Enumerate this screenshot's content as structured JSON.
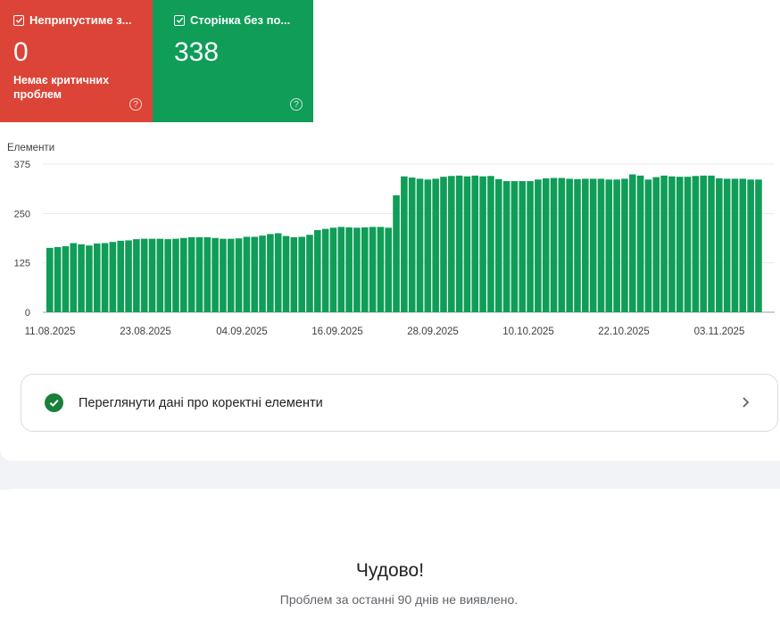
{
  "cards": {
    "invalid": {
      "title": "Неприпустиме з...",
      "value": "0",
      "subtitle": "Немає критичних проблем",
      "bg": "#db4437"
    },
    "valid": {
      "title": "Сторінка без по...",
      "value": "338",
      "bg": "#0f9d58"
    }
  },
  "chart_data": {
    "type": "bar",
    "ylabel": "Елементи",
    "ylim": [
      0,
      375
    ],
    "yticks": [
      0,
      125,
      250,
      375
    ],
    "xtick_labels": [
      "11.08.2025",
      "23.08.2025",
      "04.09.2025",
      "16.09.2025",
      "28.09.2025",
      "10.10.2025",
      "22.10.2025",
      "03.11.2025"
    ],
    "bar_color": "#0f9d58",
    "grid": true,
    "values": [
      163,
      165,
      167,
      175,
      172,
      169,
      174,
      175,
      178,
      181,
      182,
      185,
      186,
      186,
      186,
      185,
      186,
      188,
      190,
      190,
      190,
      188,
      186,
      186,
      187,
      191,
      191,
      194,
      198,
      200,
      193,
      190,
      191,
      196,
      208,
      211,
      214,
      216,
      215,
      214,
      215,
      216,
      216,
      214,
      296,
      344,
      341,
      338,
      336,
      338,
      343,
      345,
      346,
      344,
      346,
      344,
      345,
      337,
      332,
      332,
      332,
      332,
      336,
      339,
      340,
      340,
      338,
      337,
      338,
      338,
      338,
      336,
      336,
      338,
      349,
      346,
      336,
      342,
      346,
      344,
      343,
      343,
      345,
      346,
      346,
      339,
      338,
      338,
      338,
      336,
      336
    ]
  },
  "action_row": {
    "label": "Переглянути дані про коректні елементи"
  },
  "empty_state": {
    "title": "Чудово!",
    "subtitle": "Проблем за останні 90 днів не виявлено."
  }
}
